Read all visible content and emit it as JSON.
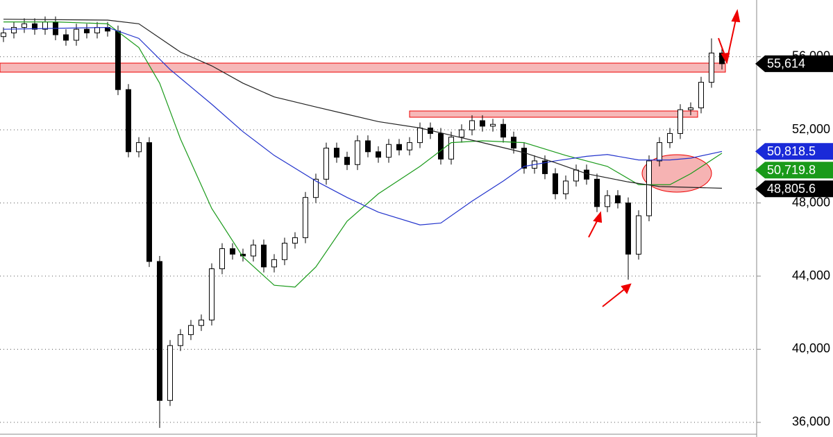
{
  "chart_data": {
    "type": "candlestick",
    "open": [
      57100,
      57300,
      57600,
      57800,
      57500,
      57900,
      57200,
      56900,
      57500,
      57300,
      57600,
      57400,
      54200,
      50800,
      51300,
      44800,
      37200,
      40200,
      40800,
      41300,
      41600,
      44400,
      45500,
      45200,
      45100,
      45700,
      44500,
      44900,
      45800,
      46100,
      48300,
      49300,
      51000,
      50500,
      50100,
      51400,
      50800,
      50500,
      51200,
      50900,
      51300,
      52100,
      51800,
      50400,
      51600,
      52000,
      52500,
      52200,
      52300,
      51600,
      51000,
      49900,
      50300,
      49600,
      48500,
      49200,
      49800,
      49300,
      47800,
      48400,
      48000,
      45200,
      47300,
      50300,
      51300,
      51800,
      53100,
      53200,
      54600,
      56200
    ],
    "high": [
      57600,
      57900,
      58100,
      58100,
      58200,
      58200,
      57500,
      57800,
      57800,
      57900,
      57900,
      57700,
      54500,
      51600,
      51600,
      45100,
      40500,
      41100,
      41600,
      41900,
      44700,
      45800,
      45800,
      45500,
      46000,
      46000,
      45200,
      46100,
      46400,
      48600,
      49600,
      51300,
      51300,
      50800,
      51700,
      51700,
      51100,
      51500,
      51500,
      51600,
      52400,
      52400,
      52100,
      51900,
      52300,
      52800,
      52800,
      52600,
      52600,
      51900,
      51300,
      50600,
      50600,
      49900,
      49500,
      50100,
      50100,
      49600,
      48700,
      48700,
      48300,
      47600,
      50600,
      51600,
      52100,
      53400,
      53500,
      54900,
      57000,
      56500
    ],
    "low": [
      56800,
      57000,
      57300,
      57200,
      57200,
      56900,
      56600,
      56600,
      57000,
      57000,
      57100,
      53900,
      50500,
      50500,
      44500,
      35700,
      36900,
      39900,
      40500,
      41000,
      41300,
      44100,
      44900,
      44800,
      44800,
      44200,
      44200,
      44600,
      45500,
      45800,
      48000,
      49000,
      50200,
      49800,
      49800,
      50500,
      50200,
      50200,
      50600,
      50600,
      51000,
      51500,
      50100,
      50100,
      51300,
      51700,
      51900,
      51900,
      51300,
      50700,
      49600,
      49600,
      49300,
      48200,
      48200,
      48900,
      49000,
      47500,
      47500,
      47700,
      43800,
      44900,
      47000,
      50000,
      51000,
      51500,
      52800,
      52900,
      54300,
      55300
    ],
    "close": [
      57300,
      57600,
      57800,
      57500,
      57900,
      57200,
      56900,
      57500,
      57300,
      57600,
      57400,
      54200,
      50800,
      51300,
      44800,
      37200,
      40200,
      40800,
      41300,
      41600,
      44400,
      45500,
      45200,
      45100,
      45700,
      44500,
      44900,
      45800,
      46100,
      48300,
      49300,
      51000,
      50500,
      50100,
      51400,
      50800,
      50500,
      51200,
      50900,
      51300,
      52100,
      51800,
      50400,
      51600,
      52000,
      52500,
      52200,
      52300,
      51600,
      51000,
      49900,
      50300,
      49600,
      48500,
      49200,
      49800,
      49300,
      47800,
      48400,
      48000,
      45200,
      47300,
      50300,
      51300,
      51800,
      53100,
      53200,
      54600,
      56200,
      55614
    ],
    "series": [
      {
        "color": "#1a9a1a",
        "x": [
          0,
          5,
          10,
          13,
          15,
          17,
          20,
          23,
          26,
          28,
          30,
          33,
          36,
          40,
          43,
          46,
          50,
          54,
          58,
          61,
          64,
          66,
          69
        ],
        "values": [
          57900,
          57900,
          57800,
          56500,
          54550,
          51500,
          47700,
          45050,
          43500,
          43400,
          44500,
          47000,
          48500,
          50000,
          51300,
          51400,
          51300,
          50600,
          50000,
          49000,
          49000,
          49600,
          50719.8
        ]
      },
      {
        "color": "#2233cc",
        "x": [
          0,
          10,
          13,
          16,
          20,
          23,
          26,
          30,
          33,
          36,
          40,
          42,
          45,
          48,
          50,
          53,
          56,
          58,
          61,
          64,
          66,
          69
        ],
        "values": [
          57500,
          57600,
          57000,
          55300,
          53400,
          51900,
          50600,
          49200,
          48300,
          47500,
          46800,
          46900,
          48100,
          49200,
          50000,
          50300,
          50550,
          50650,
          50350,
          50350,
          50450,
          50818.5
        ]
      },
      {
        "color": "#222222",
        "x": [
          0,
          10,
          13,
          17,
          20,
          23,
          26,
          30,
          33,
          36,
          40,
          43,
          46,
          50,
          53,
          56,
          60,
          63,
          69
        ],
        "values": [
          58050,
          58000,
          57800,
          56250,
          55500,
          54550,
          53800,
          53250,
          52850,
          52450,
          52100,
          51700,
          51300,
          50750,
          50200,
          49600,
          49150,
          48900,
          48805.6
        ]
      }
    ],
    "price_labels": [
      {
        "value": 55614,
        "label": "55,614",
        "color": "#000000"
      },
      {
        "value": 50818.5,
        "label": "50,818.5",
        "color": "#1a2ad8"
      },
      {
        "value": 50719.8,
        "label": "50,719.8",
        "color": "#1a9a1a"
      },
      {
        "value": 48805.6,
        "label": "48,805.6",
        "color": "#000000"
      }
    ],
    "ylim": [
      35200,
      59100
    ],
    "yticks": [
      {
        "value": 36000,
        "label": "36,000"
      },
      {
        "value": 40000,
        "label": "40,000"
      },
      {
        "value": 44000,
        "label": "44,000"
      },
      {
        "value": 48000,
        "label": "48,000"
      },
      {
        "value": 52000,
        "label": "52,000"
      },
      {
        "value": 56000,
        "label": "56,000"
      }
    ],
    "grid": true
  }
}
